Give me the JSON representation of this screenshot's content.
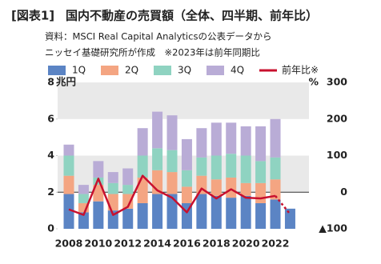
{
  "chart_data": {
    "type": "bar",
    "title_tag": "[図表1]",
    "title": "国内不動産の売買額（全体、四半期、前年比）",
    "source": [
      "資料：MSCI Real Capital Analyticsの公表データから",
      "ニッセイ基礎研究所が作成　※2023年は前年同期比"
    ],
    "y_unit": "兆円",
    "y2_unit": "%",
    "categories": [
      "2008",
      null,
      "2010",
      null,
      "2012",
      null,
      "2014",
      null,
      "2016",
      null,
      "2018",
      null,
      "2020",
      null,
      "2022",
      null
    ],
    "series": [
      {
        "name": "1Q",
        "color": "#5b84c4",
        "values": [
          1.9,
          0.9,
          1.5,
          1.0,
          1.1,
          1.4,
          1.9,
          1.9,
          1.4,
          1.9,
          1.8,
          1.7,
          1.8,
          1.4,
          1.6,
          1.1
        ]
      },
      {
        "name": "2Q",
        "color": "#f4a582",
        "values": [
          1.0,
          0.5,
          0.9,
          0.9,
          0.8,
          1.4,
          1.3,
          1.2,
          0.9,
          1.0,
          0.9,
          1.1,
          0.7,
          1.1,
          1.1,
          null
        ]
      },
      {
        "name": "3Q",
        "color": "#8fd3c1",
        "values": [
          1.1,
          0.5,
          0.4,
          0.6,
          0.5,
          1.2,
          1.2,
          1.2,
          0.9,
          1.0,
          1.3,
          1.3,
          1.5,
          1.2,
          1.2,
          null
        ]
      },
      {
        "name": "4Q",
        "color": "#b9acd6",
        "values": [
          0.6,
          0.5,
          0.9,
          0.6,
          0.9,
          1.5,
          2.0,
          1.9,
          1.7,
          1.6,
          1.8,
          1.7,
          1.6,
          1.9,
          2.1,
          null
        ]
      },
      {
        "name": "前年比※",
        "color": "#c8102e",
        "axis": "y2",
        "type": "line",
        "values": [
          -47,
          -62,
          37,
          -62,
          -40,
          45,
          5,
          -15,
          -55,
          10,
          -17,
          8,
          -15,
          -17,
          -10,
          -60
        ]
      }
    ],
    "ylim": [
      0,
      8
    ],
    "yticks": [
      0,
      2,
      4,
      6,
      8
    ],
    "y2lim": [
      -100,
      300
    ],
    "y2ticks": [
      {
        "value": -100,
        "label": "▲100"
      },
      0,
      100,
      200,
      300
    ]
  }
}
